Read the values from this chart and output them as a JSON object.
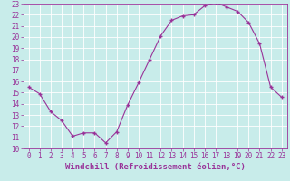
{
  "x": [
    0,
    1,
    2,
    3,
    4,
    5,
    6,
    7,
    8,
    9,
    10,
    11,
    12,
    13,
    14,
    15,
    16,
    17,
    18,
    19,
    20,
    21,
    22,
    23
  ],
  "y": [
    15.5,
    14.9,
    13.3,
    12.5,
    11.1,
    11.4,
    11.4,
    10.5,
    11.5,
    13.9,
    15.9,
    18.0,
    20.1,
    21.5,
    21.9,
    22.0,
    22.8,
    23.1,
    22.7,
    22.3,
    21.3,
    19.4,
    15.5,
    14.6
  ],
  "line_color": "#993399",
  "marker": "+",
  "marker_color": "#993399",
  "bg_color": "#c8ecea",
  "grid_color": "#ffffff",
  "xlabel": "Windchill (Refroidissement éolien,°C)",
  "ylim": [
    10,
    23
  ],
  "xlim": [
    -0.5,
    23.5
  ],
  "yticks": [
    10,
    11,
    12,
    13,
    14,
    15,
    16,
    17,
    18,
    19,
    20,
    21,
    22,
    23
  ],
  "xticks": [
    0,
    1,
    2,
    3,
    4,
    5,
    6,
    7,
    8,
    9,
    10,
    11,
    12,
    13,
    14,
    15,
    16,
    17,
    18,
    19,
    20,
    21,
    22,
    23
  ],
  "tick_fontsize": 5.5,
  "xlabel_fontsize": 6.5,
  "tick_color": "#993399",
  "axis_color": "#993399"
}
